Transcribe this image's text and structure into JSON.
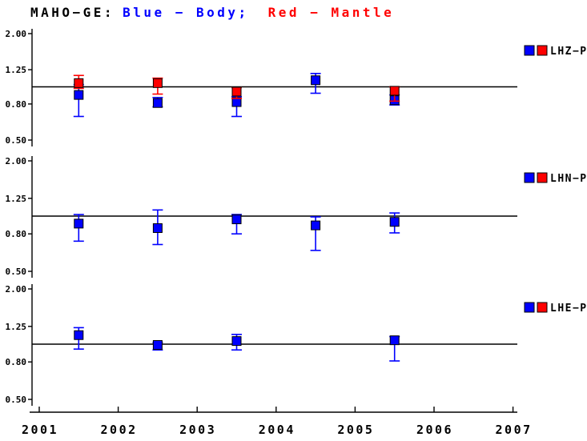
{
  "title": {
    "station": "MAHO−GE:",
    "body_legend": "Blue − Body;",
    "mantle_legend": "Red − Mantle"
  },
  "colors": {
    "body": "#0000ff",
    "mantle": "#ff0000",
    "axis": "#000000",
    "reference_line": "#000000",
    "background": "#ffffff"
  },
  "chart_data": {
    "type": "scatter",
    "y_scale": "log",
    "y_range": [
      0.5,
      2.0
    ],
    "reference_line": 1.0,
    "grid": false,
    "legend_position": "right-of-each-panel",
    "x_ticks": {
      "values": [
        2001,
        2002,
        2003,
        2004,
        2005,
        2006,
        2007
      ],
      "labels": [
        "2001",
        "2002",
        "2003",
        "2004",
        "2005",
        "2006",
        "2007"
      ]
    },
    "y_ticks": {
      "values": [
        2.0,
        1.25,
        0.8,
        0.5
      ],
      "labels": [
        "2.00",
        "1.25",
        "0.80",
        "0.50"
      ]
    },
    "panels": [
      {
        "label": "LHZ−P",
        "series": [
          {
            "name": "Body",
            "color": "body",
            "points": [
              {
                "x": 2001.5,
                "y": 0.9,
                "err_lo": 0.68,
                "err_hi": 1.03
              },
              {
                "x": 2002.5,
                "y": 0.81,
                "err_lo": 0.77,
                "err_hi": 0.87
              },
              {
                "x": 2003.5,
                "y": 0.82,
                "err_lo": 0.68,
                "err_hi": 0.88
              },
              {
                "x": 2004.5,
                "y": 1.09,
                "err_lo": 0.92,
                "err_hi": 1.19
              },
              {
                "x": 2005.5,
                "y": 0.84,
                "err_lo": 0.79,
                "err_hi": 0.9
              }
            ]
          },
          {
            "name": "Mantle",
            "color": "mantle",
            "points": [
              {
                "x": 2001.5,
                "y": 1.05,
                "err_lo": 0.98,
                "err_hi": 1.16
              },
              {
                "x": 2002.5,
                "y": 1.05,
                "err_lo": 0.91,
                "err_hi": 1.12
              },
              {
                "x": 2003.5,
                "y": 0.94,
                "err_lo": 0.86,
                "err_hi": 0.99
              },
              {
                "x": 2005.5,
                "y": 0.95,
                "err_lo": 0.83,
                "err_hi": 1.0
              }
            ]
          }
        ]
      },
      {
        "label": "LHN−P",
        "series": [
          {
            "name": "Body",
            "color": "body",
            "points": [
              {
                "x": 2001.5,
                "y": 0.91,
                "err_lo": 0.73,
                "err_hi": 1.02
              },
              {
                "x": 2002.5,
                "y": 0.86,
                "err_lo": 0.7,
                "err_hi": 1.08
              },
              {
                "x": 2003.5,
                "y": 0.96,
                "err_lo": 0.8,
                "err_hi": 1.02
              },
              {
                "x": 2004.5,
                "y": 0.89,
                "err_lo": 0.65,
                "err_hi": 0.99
              },
              {
                "x": 2005.5,
                "y": 0.93,
                "err_lo": 0.81,
                "err_hi": 1.04
              }
            ]
          },
          {
            "name": "Mantle",
            "color": "mantle",
            "points": []
          }
        ]
      },
      {
        "label": "LHE−P",
        "series": [
          {
            "name": "Body",
            "color": "body",
            "points": [
              {
                "x": 2001.5,
                "y": 1.12,
                "err_lo": 0.94,
                "err_hi": 1.23
              },
              {
                "x": 2002.5,
                "y": 0.99,
                "err_lo": 0.93,
                "err_hi": 1.02
              },
              {
                "x": 2003.5,
                "y": 1.04,
                "err_lo": 0.93,
                "err_hi": 1.13
              },
              {
                "x": 2005.5,
                "y": 1.05,
                "err_lo": 0.81,
                "err_hi": 1.1
              }
            ]
          },
          {
            "name": "Mantle",
            "color": "mantle",
            "points": []
          }
        ]
      }
    ]
  }
}
